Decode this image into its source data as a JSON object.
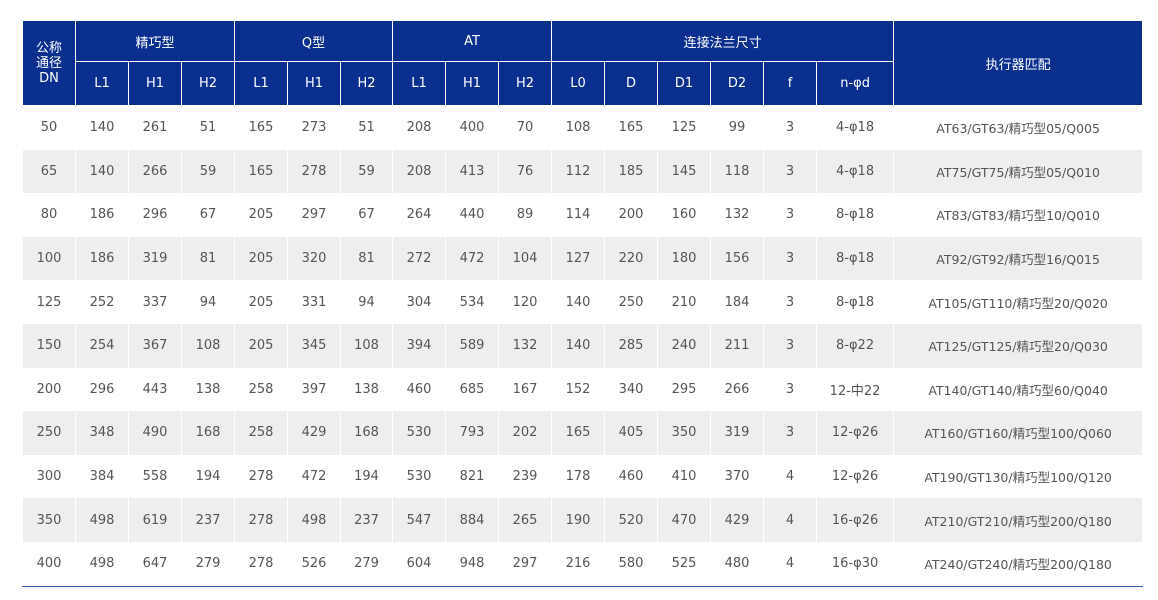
{
  "colors": {
    "header_bg": "#0a2f8f",
    "row_alt": "#eeeeee",
    "bottom_rule": "#3a5fb0"
  },
  "header": {
    "dn": [
      "公称",
      "通径",
      "DN"
    ],
    "groups": [
      "精巧型",
      "Q型",
      "AT",
      "连接法兰尺寸"
    ],
    "actuator": "执行器匹配",
    "sub": [
      "L1",
      "H1",
      "H2",
      "L1",
      "H1",
      "H2",
      "L1",
      "H1",
      "H2",
      "L0",
      "D",
      "D1",
      "D2",
      "f",
      "n-φd"
    ]
  },
  "rows": [
    [
      "50",
      "140",
      "261",
      "51",
      "165",
      "273",
      "51",
      "208",
      "400",
      "70",
      "108",
      "165",
      "125",
      "99",
      "3",
      "4-φ18",
      "AT63/GT63/精巧型05/Q005"
    ],
    [
      "65",
      "140",
      "266",
      "59",
      "165",
      "278",
      "59",
      "208",
      "413",
      "76",
      "112",
      "185",
      "145",
      "118",
      "3",
      "4-φ18",
      "AT75/GT75/精巧型05/Q010"
    ],
    [
      "80",
      "186",
      "296",
      "67",
      "205",
      "297",
      "67",
      "264",
      "440",
      "89",
      "114",
      "200",
      "160",
      "132",
      "3",
      "8-φ18",
      "AT83/GT83/精巧型10/Q010"
    ],
    [
      "100",
      "186",
      "319",
      "81",
      "205",
      "320",
      "81",
      "272",
      "472",
      "104",
      "127",
      "220",
      "180",
      "156",
      "3",
      "8-φ18",
      "AT92/GT92/精巧型16/Q015"
    ],
    [
      "125",
      "252",
      "337",
      "94",
      "205",
      "331",
      "94",
      "304",
      "534",
      "120",
      "140",
      "250",
      "210",
      "184",
      "3",
      "8-φ18",
      "AT105/GT110/精巧型20/Q020"
    ],
    [
      "150",
      "254",
      "367",
      "108",
      "205",
      "345",
      "108",
      "394",
      "589",
      "132",
      "140",
      "285",
      "240",
      "211",
      "3",
      "8-φ22",
      "AT125/GT125/精巧型20/Q030"
    ],
    [
      "200",
      "296",
      "443",
      "138",
      "258",
      "397",
      "138",
      "460",
      "685",
      "167",
      "152",
      "340",
      "295",
      "266",
      "3",
      "12-中22",
      "AT140/GT140/精巧型60/Q040"
    ],
    [
      "250",
      "348",
      "490",
      "168",
      "258",
      "429",
      "168",
      "530",
      "793",
      "202",
      "165",
      "405",
      "350",
      "319",
      "3",
      "12-φ26",
      "AT160/GT160/精巧型100/Q060"
    ],
    [
      "300",
      "384",
      "558",
      "194",
      "278",
      "472",
      "194",
      "530",
      "821",
      "239",
      "178",
      "460",
      "410",
      "370",
      "4",
      "12-φ26",
      "AT190/GT130/精巧型100/Q120"
    ],
    [
      "350",
      "498",
      "619",
      "237",
      "278",
      "498",
      "237",
      "547",
      "884",
      "265",
      "190",
      "520",
      "470",
      "429",
      "4",
      "16-φ26",
      "AT210/GT210/精巧型200/Q180"
    ],
    [
      "400",
      "498",
      "647",
      "279",
      "278",
      "526",
      "279",
      "604",
      "948",
      "297",
      "216",
      "580",
      "525",
      "480",
      "4",
      "16-φ30",
      "AT240/GT240/精巧型200/Q180"
    ]
  ]
}
